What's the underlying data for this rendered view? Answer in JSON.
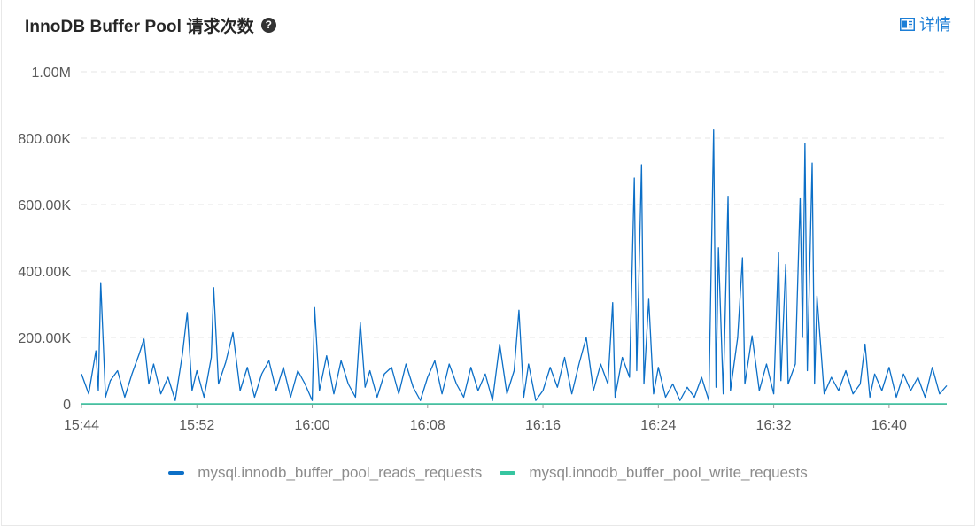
{
  "header": {
    "title": "InnoDB Buffer Pool 请求次数",
    "help_glyph": "?",
    "detail_label": "详情"
  },
  "colors": {
    "series_reads": "#0c6fc7",
    "series_writes": "#36c5a0",
    "link": "#1c7ed6",
    "grid": "#e6e6e6"
  },
  "chart_data": {
    "type": "line",
    "title": "InnoDB Buffer Pool 请求次数",
    "xlabel": "",
    "ylabel": "",
    "x_range": [
      "15:44",
      "16:44"
    ],
    "x_tick_labels": [
      "15:44",
      "15:52",
      "16:00",
      "16:08",
      "16:16",
      "16:24",
      "16:32",
      "16:40"
    ],
    "y_tick_labels": [
      "0",
      "200.00K",
      "400.00K",
      "600.00K",
      "800.00K",
      "1.00M"
    ],
    "ylim": [
      0,
      1000000
    ],
    "grid": "horizontal dashed",
    "legend_position": "bottom",
    "series": [
      {
        "name": "mysql.innodb_buffer_pool_reads_requests",
        "color": "#0c6fc7",
        "points": [
          [
            "15:44",
            90000
          ],
          [
            "15:44:30",
            30000
          ],
          [
            "15:45",
            160000
          ],
          [
            "15:45:10",
            40000
          ],
          [
            "15:45:20",
            365000
          ],
          [
            "15:45:40",
            20000
          ],
          [
            "15:46",
            70000
          ],
          [
            "15:46:30",
            100000
          ],
          [
            "15:47",
            20000
          ],
          [
            "15:47:30",
            90000
          ],
          [
            "15:48",
            150000
          ],
          [
            "15:48:20",
            195000
          ],
          [
            "15:48:40",
            60000
          ],
          [
            "15:49",
            120000
          ],
          [
            "15:49:30",
            30000
          ],
          [
            "15:50",
            80000
          ],
          [
            "15:50:30",
            10000
          ],
          [
            "15:51",
            150000
          ],
          [
            "15:51:20",
            275000
          ],
          [
            "15:51:40",
            40000
          ],
          [
            "15:52",
            100000
          ],
          [
            "15:52:30",
            20000
          ],
          [
            "15:53",
            140000
          ],
          [
            "15:53:10",
            350000
          ],
          [
            "15:53:30",
            60000
          ],
          [
            "15:54",
            125000
          ],
          [
            "15:54:30",
            215000
          ],
          [
            "15:55",
            40000
          ],
          [
            "15:55:30",
            110000
          ],
          [
            "15:56",
            20000
          ],
          [
            "15:56:30",
            90000
          ],
          [
            "15:57",
            130000
          ],
          [
            "15:57:30",
            40000
          ],
          [
            "15:58",
            110000
          ],
          [
            "15:58:30",
            20000
          ],
          [
            "15:59",
            100000
          ],
          [
            "15:59:30",
            60000
          ],
          [
            "16:00",
            10000
          ],
          [
            "16:00:10",
            290000
          ],
          [
            "16:00:30",
            40000
          ],
          [
            "16:01",
            145000
          ],
          [
            "16:01:30",
            30000
          ],
          [
            "16:02",
            130000
          ],
          [
            "16:02:30",
            60000
          ],
          [
            "16:03",
            20000
          ],
          [
            "16:03:20",
            245000
          ],
          [
            "16:03:40",
            50000
          ],
          [
            "16:04",
            100000
          ],
          [
            "16:04:30",
            20000
          ],
          [
            "16:05",
            90000
          ],
          [
            "16:05:30",
            110000
          ],
          [
            "16:06",
            30000
          ],
          [
            "16:06:30",
            120000
          ],
          [
            "16:07",
            50000
          ],
          [
            "16:07:30",
            10000
          ],
          [
            "16:08",
            80000
          ],
          [
            "16:08:30",
            130000
          ],
          [
            "16:09",
            30000
          ],
          [
            "16:09:30",
            120000
          ],
          [
            "16:10",
            60000
          ],
          [
            "16:10:30",
            20000
          ],
          [
            "16:11",
            110000
          ],
          [
            "16:11:30",
            40000
          ],
          [
            "16:12",
            90000
          ],
          [
            "16:12:30",
            10000
          ],
          [
            "16:13",
            180000
          ],
          [
            "16:13:30",
            30000
          ],
          [
            "16:14",
            100000
          ],
          [
            "16:14:20",
            282000
          ],
          [
            "16:14:40",
            20000
          ],
          [
            "16:15",
            120000
          ],
          [
            "16:15:30",
            10000
          ],
          [
            "16:16",
            40000
          ],
          [
            "16:16:30",
            110000
          ],
          [
            "16:17",
            50000
          ],
          [
            "16:17:30",
            140000
          ],
          [
            "16:18",
            30000
          ],
          [
            "16:18:30",
            120000
          ],
          [
            "16:19",
            200000
          ],
          [
            "16:19:30",
            40000
          ],
          [
            "16:20",
            120000
          ],
          [
            "16:20:30",
            60000
          ],
          [
            "16:20:50",
            305000
          ],
          [
            "16:21",
            20000
          ],
          [
            "16:21:30",
            140000
          ],
          [
            "16:22",
            80000
          ],
          [
            "16:22:20",
            680000
          ],
          [
            "16:22:30",
            100000
          ],
          [
            "16:22:50",
            720000
          ],
          [
            "16:23",
            60000
          ],
          [
            "16:23:20",
            315000
          ],
          [
            "16:23:40",
            30000
          ],
          [
            "16:24",
            110000
          ],
          [
            "16:24:30",
            20000
          ],
          [
            "16:25",
            60000
          ],
          [
            "16:25:30",
            10000
          ],
          [
            "16:26",
            50000
          ],
          [
            "16:26:30",
            20000
          ],
          [
            "16:27",
            80000
          ],
          [
            "16:27:30",
            10000
          ],
          [
            "16:27:50",
            825000
          ],
          [
            "16:28",
            50000
          ],
          [
            "16:28:10",
            470000
          ],
          [
            "16:28:30",
            30000
          ],
          [
            "16:28:50",
            625000
          ],
          [
            "16:29",
            40000
          ],
          [
            "16:29:30",
            200000
          ],
          [
            "16:29:50",
            440000
          ],
          [
            "16:30",
            60000
          ],
          [
            "16:30:30",
            205000
          ],
          [
            "16:31",
            40000
          ],
          [
            "16:31:30",
            120000
          ],
          [
            "16:32",
            30000
          ],
          [
            "16:32:20",
            455000
          ],
          [
            "16:32:30",
            70000
          ],
          [
            "16:32:50",
            420000
          ],
          [
            "16:33",
            60000
          ],
          [
            "16:33:30",
            120000
          ],
          [
            "16:33:50",
            620000
          ],
          [
            "16:34",
            200000
          ],
          [
            "16:34:10",
            785000
          ],
          [
            "16:34:20",
            100000
          ],
          [
            "16:34:40",
            725000
          ],
          [
            "16:34:50",
            60000
          ],
          [
            "16:35",
            325000
          ],
          [
            "16:35:30",
            30000
          ],
          [
            "16:36",
            80000
          ],
          [
            "16:36:30",
            40000
          ],
          [
            "16:37",
            100000
          ],
          [
            "16:37:30",
            30000
          ],
          [
            "16:38",
            60000
          ],
          [
            "16:38:20",
            180000
          ],
          [
            "16:38:40",
            20000
          ],
          [
            "16:39",
            90000
          ],
          [
            "16:39:30",
            40000
          ],
          [
            "16:40",
            110000
          ],
          [
            "16:40:30",
            20000
          ],
          [
            "16:41",
            90000
          ],
          [
            "16:41:30",
            40000
          ],
          [
            "16:42",
            80000
          ],
          [
            "16:42:30",
            20000
          ],
          [
            "16:43",
            110000
          ],
          [
            "16:43:30",
            30000
          ],
          [
            "16:44",
            55000
          ]
        ]
      },
      {
        "name": "mysql.innodb_buffer_pool_write_requests",
        "color": "#36c5a0",
        "points": [
          [
            "15:44",
            0
          ],
          [
            "16:44",
            0
          ]
        ]
      }
    ]
  }
}
